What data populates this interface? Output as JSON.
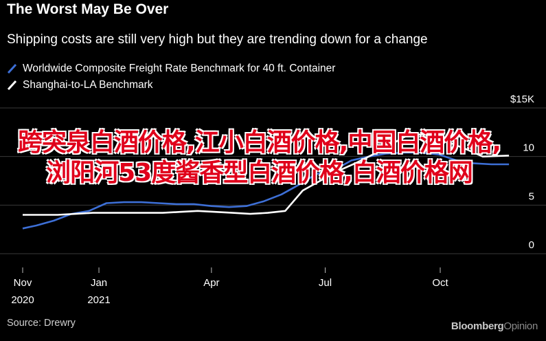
{
  "header": {
    "title": "The Worst May Be Over",
    "subtitle": "Shipping costs are still very high but they are trending down for a change"
  },
  "chart_data": {
    "type": "line",
    "y_unit_label": "$15K",
    "ylim": [
      0,
      15
    ],
    "yticks": [
      {
        "value": 15,
        "label": "$15K"
      },
      {
        "value": 10,
        "label": "10"
      },
      {
        "value": 5,
        "label": "5"
      },
      {
        "value": 0,
        "label": "0"
      }
    ],
    "xticks": [
      {
        "date": "2020-11-01",
        "line1": "Nov",
        "line2": "2020"
      },
      {
        "date": "2021-01-01",
        "line1": "Jan",
        "line2": "2021"
      },
      {
        "date": "2021-04-01",
        "line1": "Apr",
        "line2": ""
      },
      {
        "date": "2021-07-01",
        "line1": "Jul",
        "line2": ""
      },
      {
        "date": "2021-10-01",
        "line1": "Oct",
        "line2": ""
      }
    ],
    "grid": true,
    "legend_position": "top-left",
    "series": [
      {
        "name": "Worldwide Composite Freight Rate Benchmark for 40 ft. Container",
        "color": "#3d6fd6",
        "points": [
          [
            "2020-11-01",
            2.6
          ],
          [
            "2020-11-12",
            2.9
          ],
          [
            "2020-11-26",
            3.4
          ],
          [
            "2020-12-10",
            4.1
          ],
          [
            "2020-12-24",
            4.4
          ],
          [
            "2021-01-07",
            5.2
          ],
          [
            "2021-01-21",
            5.3
          ],
          [
            "2021-02-04",
            5.3
          ],
          [
            "2021-02-18",
            5.2
          ],
          [
            "2021-03-04",
            5.1
          ],
          [
            "2021-03-18",
            5.1
          ],
          [
            "2021-04-01",
            4.9
          ],
          [
            "2021-04-15",
            4.8
          ],
          [
            "2021-04-29",
            4.9
          ],
          [
            "2021-05-13",
            5.4
          ],
          [
            "2021-05-27",
            6.1
          ],
          [
            "2021-06-10",
            7.1
          ],
          [
            "2021-06-24",
            8.2
          ],
          [
            "2021-07-08",
            8.6
          ],
          [
            "2021-07-22",
            9.6
          ],
          [
            "2021-08-05",
            10.0
          ],
          [
            "2021-08-19",
            10.3
          ],
          [
            "2021-09-02",
            10.4
          ],
          [
            "2021-09-16",
            10.4
          ],
          [
            "2021-09-30",
            10.2
          ],
          [
            "2021-10-14",
            9.6
          ],
          [
            "2021-10-28",
            9.3
          ],
          [
            "2021-11-11",
            9.2
          ],
          [
            "2021-11-25",
            9.2
          ]
        ]
      },
      {
        "name": "Shanghai-to-LA Benchmark",
        "color": "#ffffff",
        "points": [
          [
            "2020-11-01",
            4.0
          ],
          [
            "2020-11-15",
            4.0
          ],
          [
            "2020-11-29",
            4.0
          ],
          [
            "2020-12-13",
            4.1
          ],
          [
            "2020-12-27",
            4.2
          ],
          [
            "2021-01-10",
            4.2
          ],
          [
            "2021-01-24",
            4.2
          ],
          [
            "2021-02-07",
            4.2
          ],
          [
            "2021-02-21",
            4.2
          ],
          [
            "2021-03-07",
            4.3
          ],
          [
            "2021-03-21",
            4.4
          ],
          [
            "2021-04-04",
            4.3
          ],
          [
            "2021-04-18",
            4.2
          ],
          [
            "2021-05-02",
            4.1
          ],
          [
            "2021-05-16",
            4.2
          ],
          [
            "2021-05-30",
            4.4
          ],
          [
            "2021-06-13",
            6.5
          ],
          [
            "2021-06-27",
            7.5
          ],
          [
            "2021-07-11",
            8.5
          ],
          [
            "2021-07-25",
            9.3
          ],
          [
            "2021-08-08",
            10.2
          ],
          [
            "2021-08-22",
            11.2
          ],
          [
            "2021-09-05",
            12.2
          ],
          [
            "2021-09-19",
            12.3
          ],
          [
            "2021-09-26",
            11.5
          ],
          [
            "2021-10-07",
            11.5
          ],
          [
            "2021-10-21",
            10.8
          ],
          [
            "2021-11-04",
            10.0
          ],
          [
            "2021-11-25",
            10.1
          ]
        ]
      }
    ]
  },
  "overlay_text": "跨突泉白酒价格,江小白酒价格,中国白酒价格,浏阳河53度酱香型白酒价格,白酒价格网",
  "footer": {
    "source": "Source: Drewry",
    "brand_part1": "Bloomberg",
    "brand_part2": "Opinion"
  },
  "colors": {
    "background": "#000000",
    "grid": "#3a3a3a",
    "overlay": "#e0001b"
  }
}
